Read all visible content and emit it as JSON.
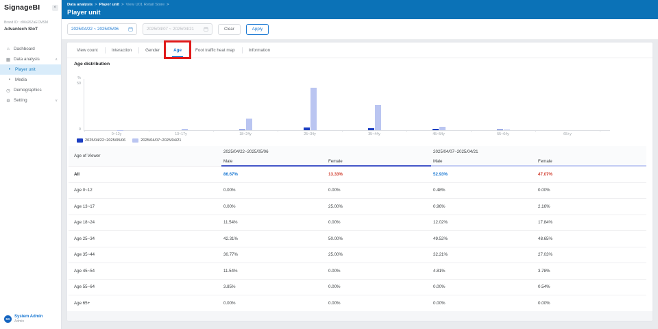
{
  "colors": {
    "header_blue": "#0b72b7",
    "accent_blue": "#1877d2",
    "male_blue": "#1877d2",
    "female_red": "#d03a2b",
    "annotation_red": "#e01a1a",
    "series1_blue": "#1b3ec2",
    "series2_periwinkle": "#bac5f1"
  },
  "sidebar": {
    "logo": "SignageBI",
    "collapse_icon": "«",
    "brand_id": "Brand ID : dWa26ZaECMSM",
    "brand_name": "Advantech SIoT",
    "items": [
      {
        "label": "Dashboard",
        "icon": "home",
        "level": 0
      },
      {
        "label": "Data analysis",
        "icon": "grid",
        "level": 0,
        "chevron": "up"
      },
      {
        "label": "Player unit",
        "icon": "dot",
        "level": 1,
        "selected": true
      },
      {
        "label": "Media",
        "icon": "dot",
        "level": 1
      },
      {
        "label": "Demographics",
        "icon": "clock",
        "level": 0
      },
      {
        "label": "Setting",
        "icon": "gear",
        "level": 0,
        "chevron": "down"
      }
    ],
    "user": {
      "initials": "SA",
      "name": "System Admin",
      "role": "Admin"
    }
  },
  "header": {
    "breadcrumbs": [
      "Data analysis",
      "Player unit",
      "View U01 Retail Store"
    ],
    "separator": ">",
    "title": "Player unit"
  },
  "toolbar": {
    "date_range_primary": "2025/04/22 ~ 2025/05/06",
    "date_range_compare": "2025/04/07 ~ 2025/04/21",
    "clear_label": "Clear",
    "apply_label": "Apply"
  },
  "tabs": [
    {
      "label": "View count"
    },
    {
      "label": "Interaction"
    },
    {
      "label": "Gender"
    },
    {
      "label": "Age",
      "active": true,
      "annotated": true
    },
    {
      "label": "Foot traffic heat map"
    },
    {
      "label": "Information"
    }
  ],
  "chart_data": {
    "type": "bar",
    "title": "Age distribution",
    "ylabel": "%",
    "ylim": [
      0,
      50
    ],
    "yticks": [
      0,
      50
    ],
    "grid": false,
    "legend_position": "bottom-left",
    "categories": [
      "0~12y",
      "13~17y",
      "18~24y",
      "25~34y",
      "35~44y",
      "45~54y",
      "55~64y",
      "65+y"
    ],
    "series": [
      {
        "name": "2025/04/22~2025/05/06",
        "color": "#1b3ec2",
        "values": [
          0,
          0,
          1,
          3,
          2.5,
          1.5,
          0.5,
          0
        ]
      },
      {
        "name": "2025/04/07~2025/04/21",
        "color": "#bac5f1",
        "values": [
          0.3,
          1.5,
          13,
          46,
          28,
          4,
          0.5,
          0
        ]
      }
    ]
  },
  "table": {
    "row_header": "Age of Viewer",
    "groups": [
      {
        "label": "2025/04/22~2025/05/06",
        "subcolumns": [
          "Male",
          "Female"
        ]
      },
      {
        "label": "2025/04/07~2025/04/21",
        "subcolumns": [
          "Male",
          "Female"
        ]
      }
    ],
    "rows": [
      {
        "label": "All",
        "values": [
          "86.67%",
          "13.33%",
          "52.93%",
          "47.07%"
        ],
        "emphasis": true
      },
      {
        "label": "Age 0~12",
        "values": [
          "0.00%",
          "0.00%",
          "0.48%",
          "0.00%"
        ]
      },
      {
        "label": "Age 13~17",
        "values": [
          "0.00%",
          "25.00%",
          "0.96%",
          "2.16%"
        ]
      },
      {
        "label": "Age 18~24",
        "values": [
          "11.54%",
          "0.00%",
          "12.02%",
          "17.84%"
        ]
      },
      {
        "label": "Age 25~34",
        "values": [
          "42.31%",
          "50.00%",
          "49.52%",
          "48.65%"
        ]
      },
      {
        "label": "Age 35~44",
        "values": [
          "30.77%",
          "25.00%",
          "32.21%",
          "27.03%"
        ]
      },
      {
        "label": "Age 45~54",
        "values": [
          "11.54%",
          "0.00%",
          "4.81%",
          "3.78%"
        ]
      },
      {
        "label": "Age 55~64",
        "values": [
          "3.85%",
          "0.00%",
          "0.00%",
          "0.54%"
        ]
      },
      {
        "label": "Age 65+",
        "values": [
          "0.00%",
          "0.00%",
          "0.00%",
          "0.00%"
        ]
      }
    ]
  }
}
